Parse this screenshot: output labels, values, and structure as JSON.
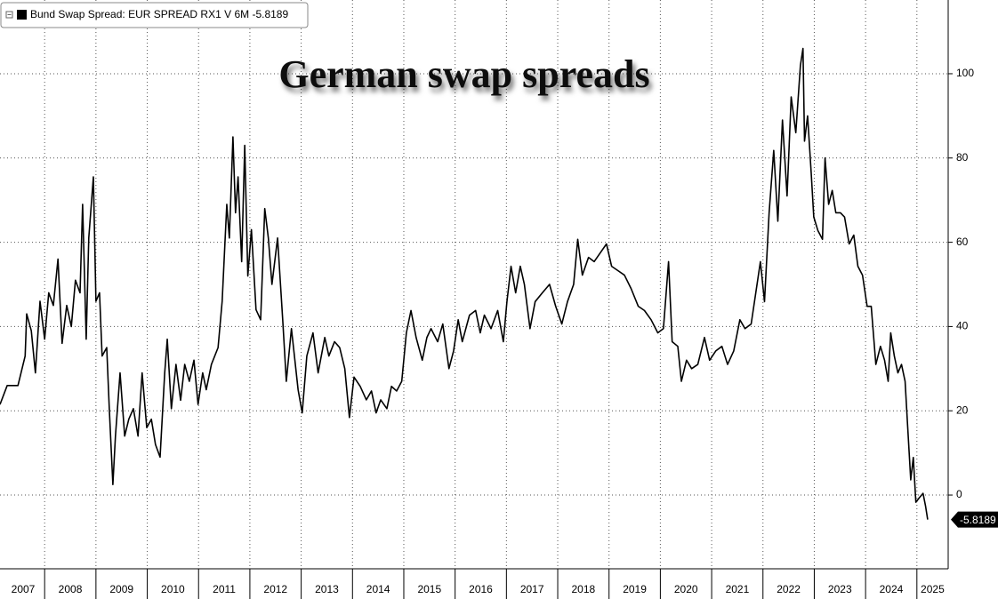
{
  "chart_data": {
    "type": "line",
    "title": "German swap spreads",
    "x": [
      2007.13,
      2007.27,
      2007.48,
      2007.62,
      2007.65,
      2007.74,
      2007.82,
      2007.91,
      2008.0,
      2008.08,
      2008.17,
      2008.26,
      2008.34,
      2008.43,
      2008.52,
      2008.6,
      2008.69,
      2008.74,
      2008.81,
      2008.86,
      2008.95,
      2009.0,
      2009.07,
      2009.12,
      2009.21,
      2009.26,
      2009.33,
      2009.38,
      2009.47,
      2009.56,
      2009.64,
      2009.73,
      2009.82,
      2009.9,
      2009.99,
      2010.08,
      2010.16,
      2010.25,
      2010.34,
      2010.39,
      2010.47,
      2010.56,
      2010.65,
      2010.73,
      2010.82,
      2010.91,
      2010.99,
      2011.08,
      2011.15,
      2011.25,
      2011.38,
      2011.46,
      2011.55,
      2011.6,
      2011.67,
      2011.72,
      2011.77,
      2011.84,
      2011.9,
      2011.96,
      2012.03,
      2012.12,
      2012.21,
      2012.29,
      2012.36,
      2012.43,
      2012.54,
      2012.64,
      2012.71,
      2012.81,
      2012.94,
      2013.02,
      2013.11,
      2013.23,
      2013.33,
      2013.46,
      2013.54,
      2013.65,
      2013.75,
      2013.85,
      2013.94,
      2014.03,
      2014.15,
      2014.27,
      2014.37,
      2014.46,
      2014.55,
      2014.67,
      2014.76,
      2014.86,
      2014.96,
      2015.05,
      2015.14,
      2015.24,
      2015.36,
      2015.45,
      2015.53,
      2015.66,
      2015.76,
      2015.88,
      2015.97,
      2016.06,
      2016.14,
      2016.28,
      2016.4,
      2016.49,
      2016.57,
      2016.7,
      2016.83,
      2016.94,
      2017.01,
      2017.09,
      2017.18,
      2017.27,
      2017.35,
      2017.46,
      2017.56,
      2017.7,
      2017.84,
      2017.96,
      2018.08,
      2018.19,
      2018.31,
      2018.39,
      2018.48,
      2018.6,
      2018.71,
      2018.83,
      2018.95,
      2019.05,
      2019.17,
      2019.3,
      2019.43,
      2019.57,
      2019.69,
      2019.82,
      2019.95,
      2020.06,
      2020.16,
      2020.23,
      2020.34,
      2020.41,
      2020.51,
      2020.61,
      2020.73,
      2020.86,
      2020.96,
      2021.08,
      2021.2,
      2021.31,
      2021.43,
      2021.55,
      2021.65,
      2021.77,
      2021.86,
      2021.95,
      2022.03,
      2022.12,
      2022.21,
      2022.29,
      2022.38,
      2022.47,
      2022.55,
      2022.64,
      2022.73,
      2022.78,
      2022.81,
      2022.87,
      2022.94,
      2022.99,
      2023.07,
      2023.16,
      2023.21,
      2023.28,
      2023.35,
      2023.42,
      2023.51,
      2023.59,
      2023.68,
      2023.77,
      2023.85,
      2023.94,
      2024.03,
      2024.11,
      2024.2,
      2024.29,
      2024.37,
      2024.44,
      2024.49,
      2024.56,
      2024.63,
      2024.7,
      2024.77,
      2024.82,
      2024.88,
      2024.93,
      2024.98,
      2025.05,
      2025.12,
      2025.17,
      2025.21
    ],
    "series": [
      {
        "name": "Bund Swap Spread: EUR SPREAD RX1 V 6M -5.8189",
        "color": "#000000",
        "values": [
          21.5,
          26,
          26,
          33,
          43,
          39,
          29,
          46,
          37,
          48,
          45,
          56,
          36,
          45,
          40,
          51,
          48,
          69,
          37,
          61,
          75.5,
          46,
          48,
          33,
          35,
          20.5,
          2.5,
          14,
          29,
          14,
          18,
          20.5,
          14,
          29,
          16,
          18,
          12,
          9,
          29,
          37,
          20.5,
          31,
          22.5,
          31,
          27,
          32,
          21.5,
          29,
          25,
          31,
          35,
          46,
          69,
          61,
          85,
          67,
          75.5,
          55.4,
          83,
          52,
          63,
          44,
          41.6,
          68,
          61,
          50,
          61,
          41.6,
          27,
          39.5,
          25,
          19.5,
          33,
          38.5,
          29,
          37.4,
          33,
          36.4,
          35,
          30,
          18.4,
          28,
          25.8,
          22.6,
          24.7,
          19.5,
          22.6,
          20.5,
          25.8,
          24.7,
          27,
          38.5,
          43.8,
          37.4,
          32,
          37.4,
          39.5,
          36.4,
          40.6,
          30,
          34.2,
          41.6,
          36.4,
          42.7,
          43.8,
          38.5,
          42.7,
          39.5,
          43.8,
          36.4,
          45.9,
          54.3,
          48,
          54.3,
          50,
          39.5,
          45.9,
          48,
          50,
          44.8,
          40.6,
          45.9,
          50,
          60.7,
          52.2,
          56.4,
          55.4,
          57.5,
          59.6,
          54.3,
          53.3,
          52.2,
          49,
          44.8,
          43.8,
          41.6,
          38.5,
          39.5,
          55.4,
          36.4,
          35.3,
          27,
          32,
          30,
          31,
          37.4,
          32,
          34.2,
          35.3,
          31,
          34.2,
          41.6,
          39.5,
          40.6,
          48,
          55.4,
          45.9,
          67,
          81.8,
          65,
          89,
          71,
          94.5,
          86,
          102,
          106,
          84,
          90,
          76.5,
          66,
          62.8,
          60.7,
          80,
          69,
          72.3,
          67,
          67,
          66,
          59.6,
          61.7,
          54.3,
          52.2,
          44.8,
          44.8,
          31,
          35.3,
          32,
          27,
          38.5,
          33,
          29,
          31,
          27,
          16.3,
          3.6,
          8.9,
          -1.7,
          -0.6,
          0.4,
          -2.7,
          -5.8189
        ]
      }
    ],
    "xlim": [
      2007.13,
      2025.61
    ],
    "xticks": [
      2007,
      2008,
      2009,
      2010,
      2011,
      2012,
      2013,
      2014,
      2015,
      2016,
      2017,
      2018,
      2019,
      2020,
      2021,
      2022,
      2023,
      2024,
      2025
    ],
    "ylim": [
      -17.5,
      117.5
    ],
    "yticks": [
      0,
      20,
      40,
      60,
      80,
      100
    ],
    "grid": true
  }
}
